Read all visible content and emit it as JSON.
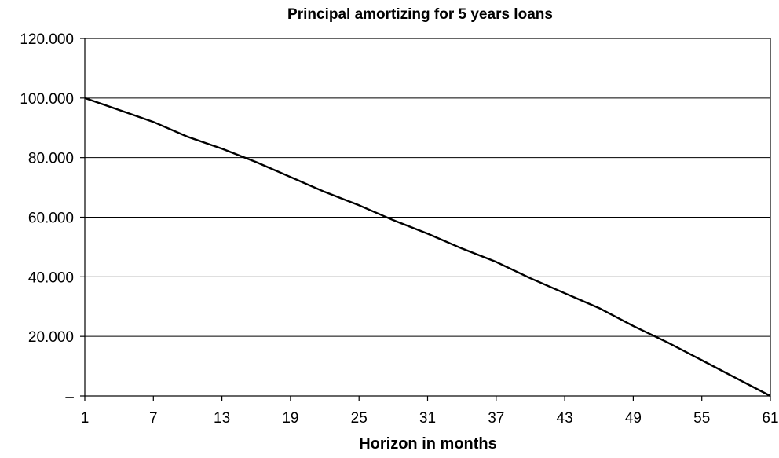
{
  "chart_data": {
    "type": "line",
    "title": "Principal amortizing for 5 years loans",
    "xlabel": "Horizon in months",
    "ylabel": "",
    "xlim": [
      1,
      61
    ],
    "ylim": [
      0,
      120000
    ],
    "x_ticks": [
      "1",
      "7",
      "13",
      "19",
      "25",
      "31",
      "37",
      "43",
      "49",
      "55",
      "61"
    ],
    "y_ticks": [
      "–",
      "20.000",
      "40.000",
      "60.000",
      "80.000",
      "100.000",
      "120.000"
    ],
    "grid": true,
    "legend": "none",
    "line_color": "#000000",
    "series": [
      {
        "x": [
          1,
          4,
          7,
          10,
          13,
          16,
          19,
          22,
          25,
          28,
          31,
          34,
          37,
          40,
          43,
          46,
          49,
          52,
          55,
          58,
          61
        ],
        "values": [
          100000,
          96000,
          92000,
          87000,
          83000,
          78500,
          73500,
          68500,
          64000,
          59000,
          54500,
          49500,
          45000,
          39500,
          34500,
          29500,
          23500,
          18000,
          12000,
          6000,
          0
        ]
      }
    ]
  }
}
